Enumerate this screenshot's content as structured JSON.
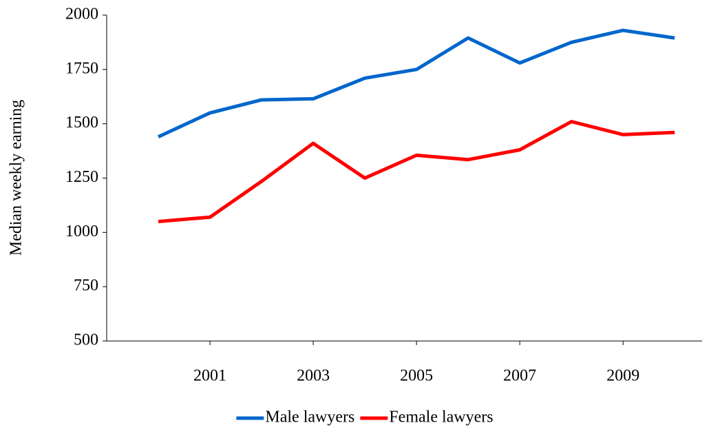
{
  "chart_data": {
    "type": "line",
    "y_label": "Median weekly earning",
    "x": [
      2000,
      2001,
      2002,
      2003,
      2004,
      2005,
      2006,
      2007,
      2008,
      2009,
      2010
    ],
    "series": [
      {
        "name": "Male lawyers",
        "color": "#0066cc",
        "values": [
          1440,
          1550,
          1610,
          1615,
          1710,
          1750,
          1895,
          1780,
          1875,
          1930,
          1895
        ]
      },
      {
        "name": "Female lawyers",
        "color": "#ff0000",
        "values": [
          1050,
          1070,
          1235,
          1410,
          1250,
          1355,
          1335,
          1380,
          1510,
          1450,
          1460
        ]
      }
    ],
    "xlim": [
      1999,
      2010.53
    ],
    "xticks": [
      2001,
      2003,
      2005,
      2007,
      2009
    ],
    "ylim": [
      500,
      2000
    ],
    "yticks": [
      500,
      750,
      1000,
      1250,
      1500,
      1750,
      2000
    ],
    "legend": "bottom"
  }
}
